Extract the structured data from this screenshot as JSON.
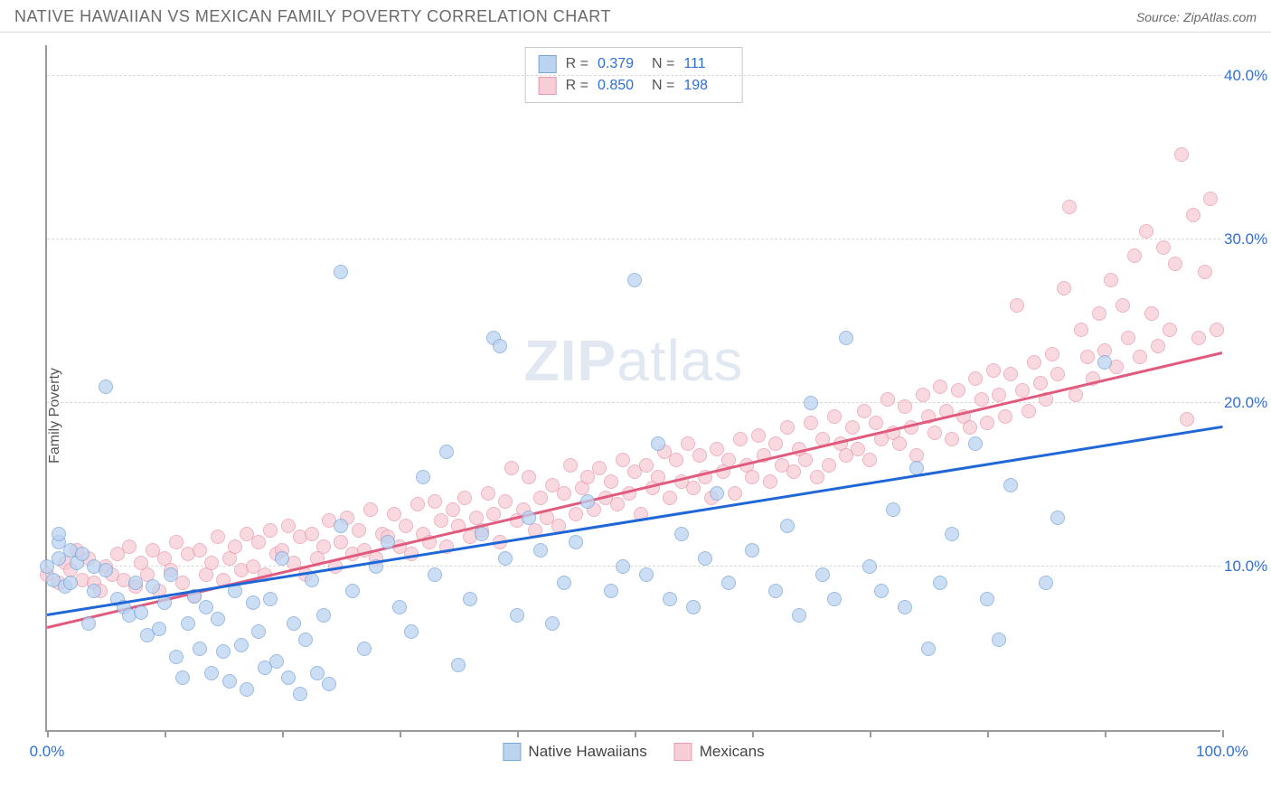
{
  "header": {
    "title": "NATIVE HAWAIIAN VS MEXICAN FAMILY POVERTY CORRELATION CHART",
    "source": "Source: ZipAtlas.com"
  },
  "chart": {
    "type": "scatter",
    "ylabel": "Family Poverty",
    "watermark_a": "ZIP",
    "watermark_b": "atlas",
    "xlim": [
      0,
      100
    ],
    "ylim": [
      0,
      42
    ],
    "yticks": [
      10,
      20,
      30,
      40
    ],
    "ytick_labels": [
      "10.0%",
      "20.0%",
      "30.0%",
      "40.0%"
    ],
    "xticks": [
      0,
      10,
      20,
      30,
      40,
      50,
      60,
      70,
      80,
      90,
      100
    ],
    "xtick_labels": {
      "0": "0.0%",
      "100": "100.0%"
    },
    "grid_color": "#d9d9d9",
    "axis_color": "#9a9a9a",
    "tick_label_color": "#2e6fd8",
    "background_color": "#ffffff",
    "marker_radius": 8,
    "marker_border_width": 1.5,
    "series": {
      "hawaiians": {
        "label": "Native Hawaiians",
        "fill": "#bcd3f0",
        "stroke": "#7aa6da",
        "trend_color": "#1f66d6",
        "trend": {
          "x1": 0,
          "y1": 7.0,
          "x2": 100,
          "y2": 18.5
        },
        "R": "0.379",
        "N": "111",
        "points": [
          [
            0,
            10
          ],
          [
            0.5,
            9.2
          ],
          [
            1,
            10.5
          ],
          [
            1,
            11.5
          ],
          [
            1,
            12
          ],
          [
            1.5,
            8.8
          ],
          [
            2,
            11
          ],
          [
            2,
            9
          ],
          [
            2.5,
            10.2
          ],
          [
            3,
            10.8
          ],
          [
            3.5,
            6.5
          ],
          [
            4,
            8.5
          ],
          [
            4,
            10
          ],
          [
            5,
            9.8
          ],
          [
            5,
            21
          ],
          [
            6,
            8
          ],
          [
            6.5,
            7.5
          ],
          [
            7,
            7
          ],
          [
            7.5,
            9
          ],
          [
            8,
            7.2
          ],
          [
            8.5,
            5.8
          ],
          [
            9,
            8.8
          ],
          [
            9.5,
            6.2
          ],
          [
            10,
            7.8
          ],
          [
            10.5,
            9.5
          ],
          [
            11,
            4.5
          ],
          [
            11.5,
            3.2
          ],
          [
            12,
            6.5
          ],
          [
            12.5,
            8.2
          ],
          [
            13,
            5
          ],
          [
            13.5,
            7.5
          ],
          [
            14,
            3.5
          ],
          [
            14.5,
            6.8
          ],
          [
            15,
            4.8
          ],
          [
            15.5,
            3
          ],
          [
            16,
            8.5
          ],
          [
            16.5,
            5.2
          ],
          [
            17,
            2.5
          ],
          [
            17.5,
            7.8
          ],
          [
            18,
            6
          ],
          [
            18.5,
            3.8
          ],
          [
            19,
            8
          ],
          [
            19.5,
            4.2
          ],
          [
            20,
            10.5
          ],
          [
            20.5,
            3.2
          ],
          [
            21,
            6.5
          ],
          [
            21.5,
            2.2
          ],
          [
            22,
            5.5
          ],
          [
            22.5,
            9.2
          ],
          [
            23,
            3.5
          ],
          [
            23.5,
            7
          ],
          [
            24,
            2.8
          ],
          [
            25,
            12.5
          ],
          [
            25,
            28
          ],
          [
            26,
            8.5
          ],
          [
            27,
            5
          ],
          [
            28,
            10
          ],
          [
            29,
            11.5
          ],
          [
            30,
            7.5
          ],
          [
            31,
            6
          ],
          [
            32,
            15.5
          ],
          [
            33,
            9.5
          ],
          [
            34,
            17
          ],
          [
            35,
            4
          ],
          [
            36,
            8
          ],
          [
            37,
            12
          ],
          [
            38,
            24
          ],
          [
            38.5,
            23.5
          ],
          [
            39,
            10.5
          ],
          [
            40,
            7
          ],
          [
            41,
            13
          ],
          [
            42,
            11
          ],
          [
            43,
            6.5
          ],
          [
            44,
            9
          ],
          [
            45,
            11.5
          ],
          [
            46,
            14
          ],
          [
            48,
            8.5
          ],
          [
            49,
            10
          ],
          [
            50,
            27.5
          ],
          [
            51,
            9.5
          ],
          [
            52,
            17.5
          ],
          [
            53,
            8
          ],
          [
            54,
            12
          ],
          [
            55,
            7.5
          ],
          [
            56,
            10.5
          ],
          [
            57,
            14.5
          ],
          [
            58,
            9
          ],
          [
            60,
            11
          ],
          [
            62,
            8.5
          ],
          [
            63,
            12.5
          ],
          [
            64,
            7
          ],
          [
            65,
            20
          ],
          [
            66,
            9.5
          ],
          [
            67,
            8
          ],
          [
            68,
            24
          ],
          [
            70,
            10
          ],
          [
            71,
            8.5
          ],
          [
            72,
            13.5
          ],
          [
            73,
            7.5
          ],
          [
            74,
            16
          ],
          [
            75,
            5
          ],
          [
            76,
            9
          ],
          [
            77,
            12
          ],
          [
            79,
            17.5
          ],
          [
            80,
            8
          ],
          [
            81,
            5.5
          ],
          [
            82,
            15
          ],
          [
            85,
            9
          ],
          [
            86,
            13
          ],
          [
            90,
            22.5
          ]
        ]
      },
      "mexicans": {
        "label": "Mexicans",
        "fill": "#f7cdd6",
        "stroke": "#e99ab0",
        "trend_color": "#e15b7e",
        "trend": {
          "x1": 0,
          "y1": 6.2,
          "x2": 100,
          "y2": 23.0
        },
        "R": "0.850",
        "N": "198",
        "points": [
          [
            0,
            9.5
          ],
          [
            1,
            9
          ],
          [
            1.5,
            10.2
          ],
          [
            2,
            9.8
          ],
          [
            2.5,
            11
          ],
          [
            3,
            9.2
          ],
          [
            3.5,
            10.5
          ],
          [
            4,
            9
          ],
          [
            4.5,
            8.5
          ],
          [
            5,
            10
          ],
          [
            5.5,
            9.5
          ],
          [
            6,
            10.8
          ],
          [
            6.5,
            9.2
          ],
          [
            7,
            11.2
          ],
          [
            7.5,
            8.8
          ],
          [
            8,
            10.2
          ],
          [
            8.5,
            9.5
          ],
          [
            9,
            11
          ],
          [
            9.5,
            8.5
          ],
          [
            10,
            10.5
          ],
          [
            10.5,
            9.8
          ],
          [
            11,
            11.5
          ],
          [
            11.5,
            9
          ],
          [
            12,
            10.8
          ],
          [
            12.5,
            8.2
          ],
          [
            13,
            11
          ],
          [
            13.5,
            9.5
          ],
          [
            14,
            10.2
          ],
          [
            14.5,
            11.8
          ],
          [
            15,
            9.2
          ],
          [
            15.5,
            10.5
          ],
          [
            16,
            11.2
          ],
          [
            16.5,
            9.8
          ],
          [
            17,
            12
          ],
          [
            17.5,
            10
          ],
          [
            18,
            11.5
          ],
          [
            18.5,
            9.5
          ],
          [
            19,
            12.2
          ],
          [
            19.5,
            10.8
          ],
          [
            20,
            11
          ],
          [
            20.5,
            12.5
          ],
          [
            21,
            10.2
          ],
          [
            21.5,
            11.8
          ],
          [
            22,
            9.5
          ],
          [
            22.5,
            12
          ],
          [
            23,
            10.5
          ],
          [
            23.5,
            11.2
          ],
          [
            24,
            12.8
          ],
          [
            24.5,
            10
          ],
          [
            25,
            11.5
          ],
          [
            25.5,
            13
          ],
          [
            26,
            10.8
          ],
          [
            26.5,
            12.2
          ],
          [
            27,
            11
          ],
          [
            27.5,
            13.5
          ],
          [
            28,
            10.5
          ],
          [
            28.5,
            12
          ],
          [
            29,
            11.8
          ],
          [
            29.5,
            13.2
          ],
          [
            30,
            11.2
          ],
          [
            30.5,
            12.5
          ],
          [
            31,
            10.8
          ],
          [
            31.5,
            13.8
          ],
          [
            32,
            12
          ],
          [
            32.5,
            11.5
          ],
          [
            33,
            14
          ],
          [
            33.5,
            12.8
          ],
          [
            34,
            11.2
          ],
          [
            34.5,
            13.5
          ],
          [
            35,
            12.5
          ],
          [
            35.5,
            14.2
          ],
          [
            36,
            11.8
          ],
          [
            36.5,
            13
          ],
          [
            37,
            12.2
          ],
          [
            37.5,
            14.5
          ],
          [
            38,
            13.2
          ],
          [
            38.5,
            11.5
          ],
          [
            39,
            14
          ],
          [
            39.5,
            16
          ],
          [
            40,
            12.8
          ],
          [
            40.5,
            13.5
          ],
          [
            41,
            15.5
          ],
          [
            41.5,
            12.2
          ],
          [
            42,
            14.2
          ],
          [
            42.5,
            13
          ],
          [
            43,
            15
          ],
          [
            43.5,
            12.5
          ],
          [
            44,
            14.5
          ],
          [
            44.5,
            16.2
          ],
          [
            45,
            13.2
          ],
          [
            45.5,
            14.8
          ],
          [
            46,
            15.5
          ],
          [
            46.5,
            13.5
          ],
          [
            47,
            16
          ],
          [
            47.5,
            14.2
          ],
          [
            48,
            15.2
          ],
          [
            48.5,
            13.8
          ],
          [
            49,
            16.5
          ],
          [
            49.5,
            14.5
          ],
          [
            50,
            15.8
          ],
          [
            50.5,
            13.2
          ],
          [
            51,
            16.2
          ],
          [
            51.5,
            14.8
          ],
          [
            52,
            15.5
          ],
          [
            52.5,
            17
          ],
          [
            53,
            14.2
          ],
          [
            53.5,
            16.5
          ],
          [
            54,
            15.2
          ],
          [
            54.5,
            17.5
          ],
          [
            55,
            14.8
          ],
          [
            55.5,
            16.8
          ],
          [
            56,
            15.5
          ],
          [
            56.5,
            14.2
          ],
          [
            57,
            17.2
          ],
          [
            57.5,
            15.8
          ],
          [
            58,
            16.5
          ],
          [
            58.5,
            14.5
          ],
          [
            59,
            17.8
          ],
          [
            59.5,
            16.2
          ],
          [
            60,
            15.5
          ],
          [
            60.5,
            18
          ],
          [
            61,
            16.8
          ],
          [
            61.5,
            15.2
          ],
          [
            62,
            17.5
          ],
          [
            62.5,
            16.2
          ],
          [
            63,
            18.5
          ],
          [
            63.5,
            15.8
          ],
          [
            64,
            17.2
          ],
          [
            64.5,
            16.5
          ],
          [
            65,
            18.8
          ],
          [
            65.5,
            15.5
          ],
          [
            66,
            17.8
          ],
          [
            66.5,
            16.2
          ],
          [
            67,
            19.2
          ],
          [
            67.5,
            17.5
          ],
          [
            68,
            16.8
          ],
          [
            68.5,
            18.5
          ],
          [
            69,
            17.2
          ],
          [
            69.5,
            19.5
          ],
          [
            70,
            16.5
          ],
          [
            70.5,
            18.8
          ],
          [
            71,
            17.8
          ],
          [
            71.5,
            20.2
          ],
          [
            72,
            18.2
          ],
          [
            72.5,
            17.5
          ],
          [
            73,
            19.8
          ],
          [
            73.5,
            18.5
          ],
          [
            74,
            16.8
          ],
          [
            74.5,
            20.5
          ],
          [
            75,
            19.2
          ],
          [
            75.5,
            18.2
          ],
          [
            76,
            21
          ],
          [
            76.5,
            19.5
          ],
          [
            77,
            17.8
          ],
          [
            77.5,
            20.8
          ],
          [
            78,
            19.2
          ],
          [
            78.5,
            18.5
          ],
          [
            79,
            21.5
          ],
          [
            79.5,
            20.2
          ],
          [
            80,
            18.8
          ],
          [
            80.5,
            22
          ],
          [
            81,
            20.5
          ],
          [
            81.5,
            19.2
          ],
          [
            82,
            21.8
          ],
          [
            82.5,
            26
          ],
          [
            83,
            20.8
          ],
          [
            83.5,
            19.5
          ],
          [
            84,
            22.5
          ],
          [
            84.5,
            21.2
          ],
          [
            85,
            20.2
          ],
          [
            85.5,
            23
          ],
          [
            86,
            21.8
          ],
          [
            86.5,
            27
          ],
          [
            87,
            32
          ],
          [
            87.5,
            20.5
          ],
          [
            88,
            24.5
          ],
          [
            88.5,
            22.8
          ],
          [
            89,
            21.5
          ],
          [
            89.5,
            25.5
          ],
          [
            90,
            23.2
          ],
          [
            90.5,
            27.5
          ],
          [
            91,
            22.2
          ],
          [
            91.5,
            26
          ],
          [
            92,
            24
          ],
          [
            92.5,
            29
          ],
          [
            93,
            22.8
          ],
          [
            93.5,
            30.5
          ],
          [
            94,
            25.5
          ],
          [
            94.5,
            23.5
          ],
          [
            95,
            29.5
          ],
          [
            95.5,
            24.5
          ],
          [
            96,
            28.5
          ],
          [
            96.5,
            35.2
          ],
          [
            97,
            19
          ],
          [
            97.5,
            31.5
          ],
          [
            98,
            24
          ],
          [
            98.5,
            28
          ],
          [
            99,
            32.5
          ],
          [
            99.5,
            24.5
          ]
        ]
      }
    }
  },
  "stats_box": {
    "r_label": "R  =",
    "n_label": "N  ="
  }
}
